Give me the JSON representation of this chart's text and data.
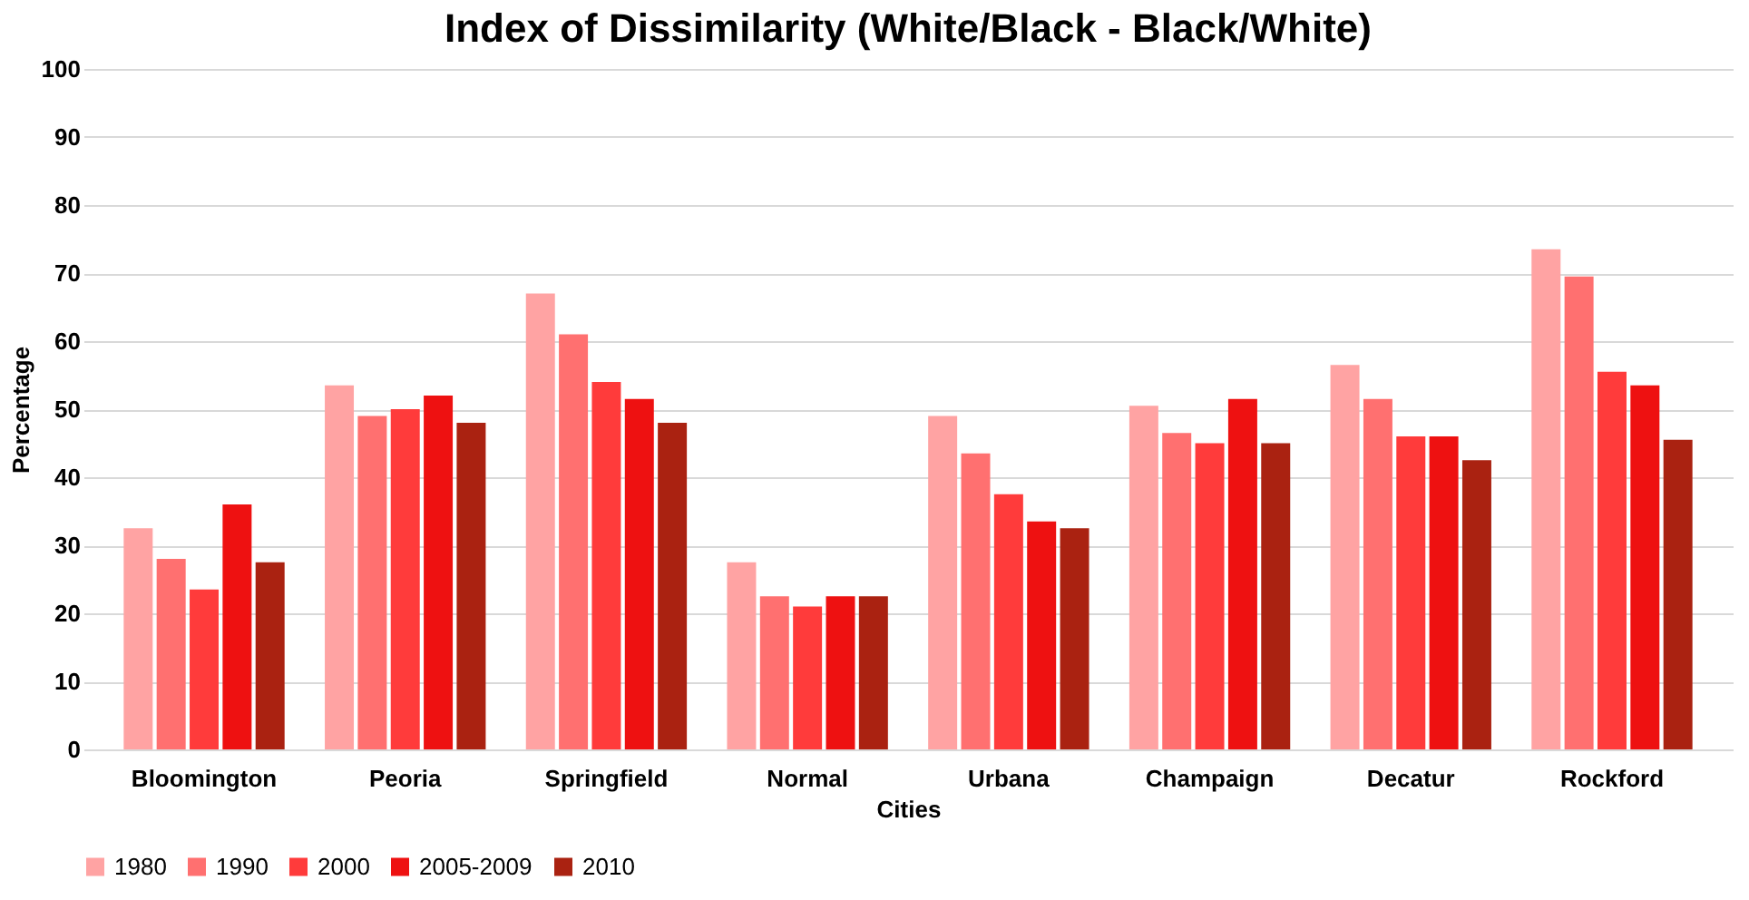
{
  "chart_data": {
    "type": "bar",
    "title": "Index of Dissimilarity (White/Black - Black/White)",
    "xlabel": "Cities",
    "ylabel": "Percentage",
    "categories": [
      "Bloomington",
      "Peoria",
      "Springfield",
      "Normal",
      "Urbana",
      "Champaign",
      "Decatur",
      "Rockford"
    ],
    "series": [
      {
        "name": "1980",
        "color": "#ffa3a3",
        "values": [
          32.5,
          53.5,
          67,
          27.5,
          49,
          50.5,
          56.5,
          73.5
        ]
      },
      {
        "name": "1990",
        "color": "#ff7070",
        "values": [
          28,
          49,
          61,
          22.5,
          43.5,
          46.5,
          51.5,
          69.5
        ]
      },
      {
        "name": "2000",
        "color": "#ff3b3b",
        "values": [
          23.5,
          50,
          54,
          21,
          37.5,
          45,
          46,
          55.5
        ]
      },
      {
        "name": "2005-2009",
        "color": "#ee1111",
        "values": [
          36,
          52,
          51.5,
          22.5,
          33.5,
          51.5,
          46,
          53.5
        ]
      },
      {
        "name": "2010",
        "color": "#aa2211",
        "values": [
          27.5,
          48,
          48,
          22.5,
          32.5,
          45,
          42.5,
          45.5
        ]
      }
    ],
    "ylim": [
      0,
      100
    ],
    "yticks": [
      0,
      10,
      20,
      30,
      40,
      50,
      60,
      70,
      80,
      90,
      100
    ],
    "grid": "y",
    "legend": "bottom"
  }
}
